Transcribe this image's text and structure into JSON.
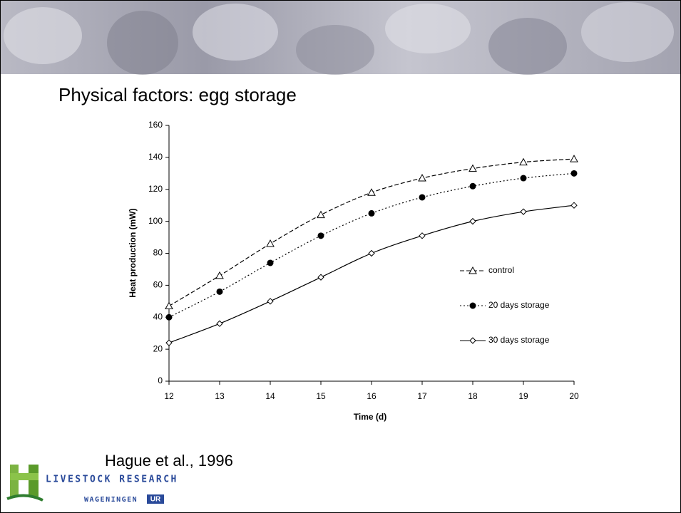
{
  "slide": {
    "title": "Physical factors: egg storage",
    "citation": "Hague et al., 1996",
    "logo": {
      "line1": "LIVESTOCK RESEARCH",
      "line2": "WAGENINGEN",
      "badge": "UR"
    }
  },
  "chart_data": {
    "type": "line",
    "x_label": "Time (d)",
    "y_label": "Heat production (mW)",
    "x": [
      12,
      13,
      14,
      15,
      16,
      17,
      18,
      19,
      20
    ],
    "xlim": [
      12,
      20
    ],
    "xticks": [
      12,
      13,
      14,
      15,
      16,
      17,
      18,
      19,
      20
    ],
    "ylim": [
      0,
      160
    ],
    "yticks": [
      0,
      20,
      40,
      60,
      80,
      100,
      120,
      140,
      160
    ],
    "grid": false,
    "legend": "right",
    "smooth": true,
    "series": [
      {
        "name": "control",
        "color": "#000000",
        "marker": "triangle",
        "dash": "dashed",
        "values": [
          47,
          66,
          86,
          104,
          118,
          127,
          133,
          137,
          139
        ]
      },
      {
        "name": "20 days storage",
        "color": "#000000",
        "marker": "circle",
        "dash": "dotted",
        "values": [
          40,
          56,
          74,
          91,
          105,
          115,
          122,
          127,
          130
        ]
      },
      {
        "name": "30 days storage",
        "color": "#000000",
        "marker": "diamond",
        "dash": "solid",
        "values": [
          24,
          36,
          50,
          65,
          80,
          91,
          100,
          106,
          110
        ]
      }
    ]
  }
}
